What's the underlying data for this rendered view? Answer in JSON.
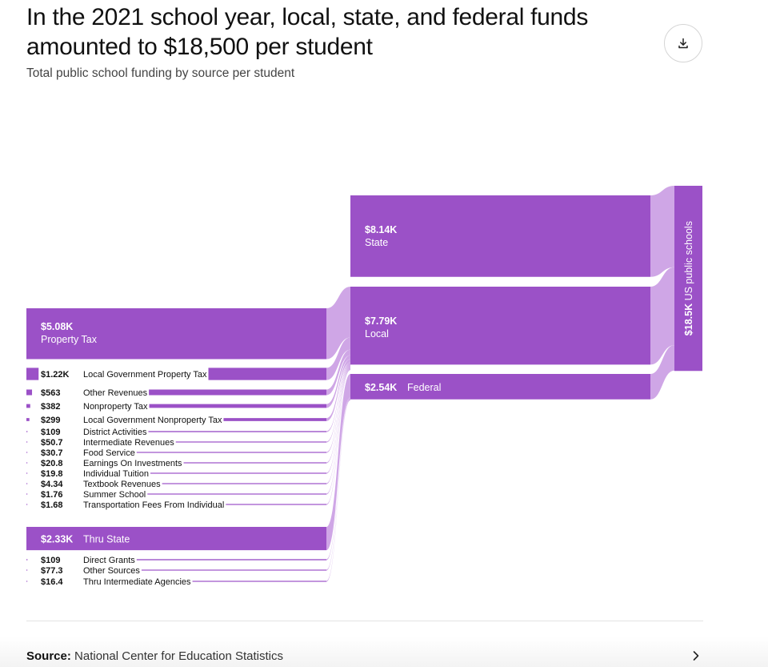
{
  "header": {
    "title": "In the 2021 school year, local, state, and federal funds amounted to $18,500 per student",
    "subtitle": "Total public school funding by source per student",
    "download_icon": "download-icon"
  },
  "chart_data": {
    "type": "sankey",
    "unit": "US dollars per student",
    "total": {
      "label": "US public schools",
      "value": 18500,
      "value_label": "$18.5K"
    },
    "sources": [
      {
        "id": "state",
        "label": "State",
        "value": 8140,
        "value_label": "$8.14K"
      },
      {
        "id": "local",
        "label": "Local",
        "value": 7790,
        "value_label": "$7.79K"
      },
      {
        "id": "federal",
        "label": "Federal",
        "value": 2540,
        "value_label": "$2.54K"
      }
    ],
    "subsources": [
      {
        "label": "Property Tax",
        "value": 5080,
        "value_label": "$5.08K",
        "parent": "local"
      },
      {
        "label": "Local Government Property Tax",
        "value": 1220,
        "value_label": "$1.22K",
        "parent": "local"
      },
      {
        "label": "Other Revenues",
        "value": 563,
        "value_label": "$563",
        "parent": "local"
      },
      {
        "label": "Nonproperty Tax",
        "value": 382,
        "value_label": "$382",
        "parent": "local"
      },
      {
        "label": "Local Government Nonproperty Tax",
        "value": 299,
        "value_label": "$299",
        "parent": "local"
      },
      {
        "label": "District Activities",
        "value": 109,
        "value_label": "$109",
        "parent": "local"
      },
      {
        "label": "Intermediate Revenues",
        "value": 50.7,
        "value_label": "$50.7",
        "parent": "local"
      },
      {
        "label": "Food Service",
        "value": 30.7,
        "value_label": "$30.7",
        "parent": "local"
      },
      {
        "label": "Earnings On Investments",
        "value": 20.8,
        "value_label": "$20.8",
        "parent": "local"
      },
      {
        "label": "Individual Tuition",
        "value": 19.8,
        "value_label": "$19.8",
        "parent": "local"
      },
      {
        "label": "Textbook Revenues",
        "value": 4.34,
        "value_label": "$4.34",
        "parent": "local"
      },
      {
        "label": "Summer School",
        "value": 1.76,
        "value_label": "$1.76",
        "parent": "local"
      },
      {
        "label": "Transportation Fees From Individual",
        "value": 1.68,
        "value_label": "$1.68",
        "parent": "local"
      },
      {
        "label": "Thru State",
        "value": 2330,
        "value_label": "$2.33K",
        "parent": "federal"
      },
      {
        "label": "Direct Grants",
        "value": 109,
        "value_label": "$109",
        "parent": "federal"
      },
      {
        "label": "Other Sources",
        "value": 77.3,
        "value_label": "$77.3",
        "parent": "federal"
      },
      {
        "label": "Thru Intermediate Agencies",
        "value": 16.4,
        "value_label": "$16.4",
        "parent": "federal"
      }
    ],
    "colors": {
      "node": "#9b51c7",
      "link": "#cfa6e6"
    }
  },
  "footer": {
    "source_label": "Source:",
    "source_text": "National Center for Education Statistics",
    "chevron_icon": "chevron-right-icon"
  }
}
